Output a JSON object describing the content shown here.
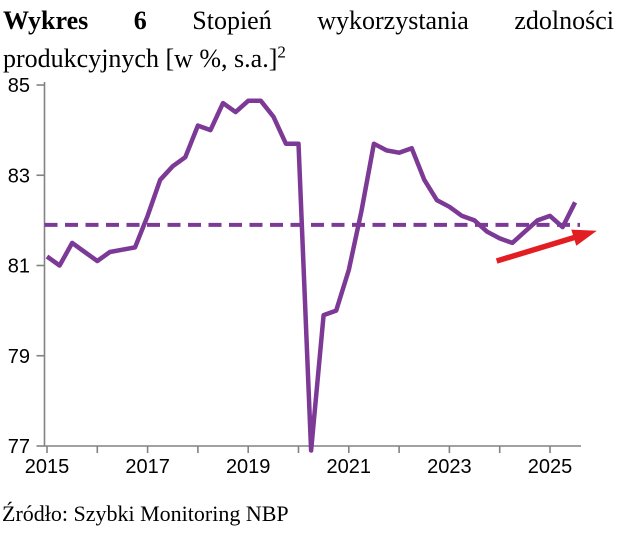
{
  "title": {
    "prefix_bold": "Wykres 6",
    "line1_rest": "Stopień wykorzystania zdolności",
    "line2": "produkcyjnych [w %, s.a.]",
    "superscript": "2"
  },
  "source": "Źródło: Szybki Monitoring NBP",
  "colors": {
    "series": "#7c3a96",
    "average_line": "#7c3a96",
    "arrow": "#e31e22",
    "axis": "#828282",
    "label_text": "#000000"
  },
  "chart_data": {
    "type": "line",
    "title": "Stopień wykorzystania zdolności produkcyjnych [w %, s.a.]",
    "xlabel": "",
    "ylabel": "",
    "ylim": [
      77,
      85
    ],
    "yticks": [
      77,
      79,
      81,
      83,
      85
    ],
    "xticks": [
      2015,
      2016,
      2017,
      2018,
      2019,
      2020,
      2021,
      2022,
      2023,
      2024,
      2025
    ],
    "xtick_labels": [
      "2015",
      "2017",
      "2019",
      "2021",
      "2023",
      "2025"
    ],
    "x_start": 2015.0,
    "x_step": 0.25,
    "x_frequency": "quarterly",
    "grid": false,
    "legend": "none",
    "series": [
      {
        "name": "Stopień wykorzystania zdolności produkcyjnych (s.a.)",
        "values": [
          81.2,
          81.0,
          81.5,
          81.3,
          81.1,
          81.3,
          81.35,
          81.4,
          82.1,
          82.9,
          83.2,
          83.4,
          84.1,
          84.0,
          84.6,
          84.4,
          84.65,
          84.65,
          84.3,
          83.7,
          83.7,
          76.9,
          79.9,
          80.0,
          80.9,
          82.2,
          83.7,
          83.55,
          83.5,
          83.6,
          82.9,
          82.45,
          82.3,
          82.1,
          82.0,
          81.75,
          81.6,
          81.5,
          81.75,
          82.0,
          82.1,
          81.85,
          82.4
        ]
      }
    ],
    "average_line": {
      "value": 81.9,
      "style": "dashed"
    },
    "annotations": [
      {
        "type": "arrow",
        "from_x": 2023.94,
        "from_y": 81.1,
        "to_x": 2025.93,
        "to_y": 81.77,
        "meaning": "upward-trend-arrow"
      }
    ]
  }
}
